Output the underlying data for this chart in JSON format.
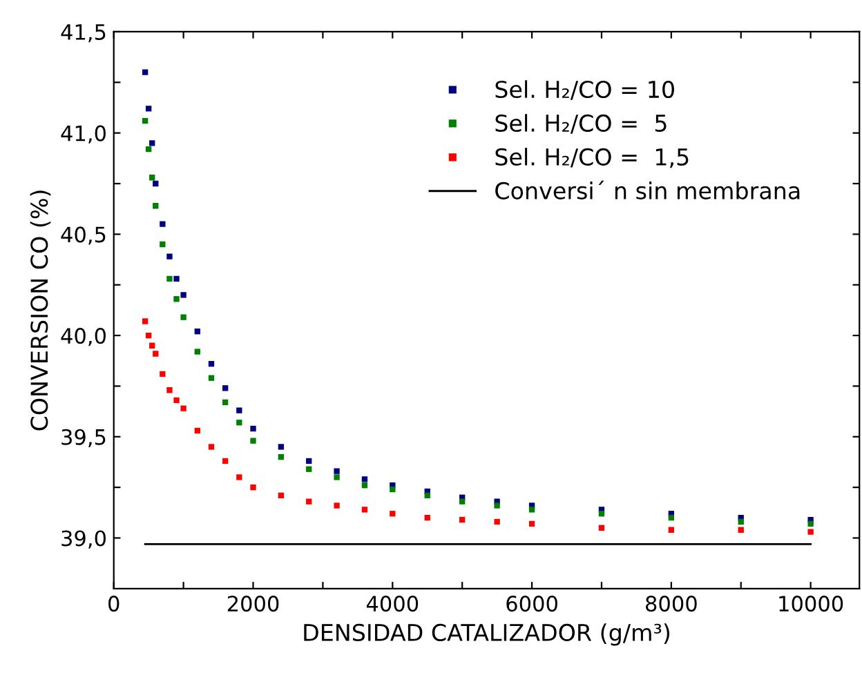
{
  "chart_data": {
    "type": "scatter",
    "xlabel": "DENSIDAD CATALIZADOR (g/m³)",
    "ylabel": "CONVERSION CO (%)",
    "x": [
      450,
      500,
      550,
      600,
      700,
      800,
      900,
      1000,
      1200,
      1400,
      1600,
      1800,
      2000,
      2400,
      2800,
      3200,
      3600,
      4000,
      4500,
      5000,
      5500,
      6000,
      7000,
      8000,
      9000,
      10000
    ],
    "series": [
      {
        "name": "Sel. H₂/CO = 10",
        "marker": "square",
        "color": "#000080",
        "values": [
          41.3,
          41.12,
          40.95,
          40.75,
          40.55,
          40.39,
          40.28,
          40.2,
          40.02,
          39.86,
          39.74,
          39.63,
          39.54,
          39.45,
          39.38,
          39.33,
          39.29,
          39.26,
          39.23,
          39.2,
          39.18,
          39.16,
          39.14,
          39.12,
          39.1,
          39.09
        ]
      },
      {
        "name": "Sel. H₂/CO =  5",
        "marker": "square",
        "color": "#008000",
        "values": [
          41.06,
          40.92,
          40.78,
          40.64,
          40.45,
          40.28,
          40.18,
          40.09,
          39.92,
          39.79,
          39.67,
          39.57,
          39.48,
          39.4,
          39.34,
          39.3,
          39.26,
          39.24,
          39.21,
          39.18,
          39.16,
          39.14,
          39.12,
          39.1,
          39.08,
          39.07
        ]
      },
      {
        "name": "Sel. H₂/CO =  1,5",
        "marker": "square",
        "color": "#ff0000",
        "values": [
          40.07,
          40.0,
          39.95,
          39.91,
          39.81,
          39.73,
          39.68,
          39.64,
          39.53,
          39.45,
          39.38,
          39.3,
          39.25,
          39.21,
          39.18,
          39.16,
          39.14,
          39.12,
          39.1,
          39.09,
          39.08,
          39.07,
          39.05,
          39.04,
          39.04,
          39.03
        ]
      },
      {
        "name": "Conversi´ n sin membrana",
        "type": "line",
        "color": "#000000",
        "x": [
          450,
          10000
        ],
        "values": [
          38.97,
          38.97
        ]
      }
    ],
    "legend": "top right",
    "grid": false,
    "xlim": [
      0,
      10700
    ],
    "ylim": [
      38.75,
      41.5
    ],
    "xticks": [
      0,
      {
        "value": 1000,
        "label": null
      },
      2000,
      {
        "value": 3000,
        "label": null
      },
      4000,
      {
        "value": 5000,
        "label": null
      },
      6000,
      {
        "value": 7000,
        "label": null
      },
      8000,
      {
        "value": 9000,
        "label": null
      },
      10000
    ],
    "yticks": [
      {
        "value": 39.0,
        "label": "39,0"
      },
      {
        "value": 39.25,
        "label": null
      },
      {
        "value": 39.5,
        "label": "39,5"
      },
      {
        "value": 39.75,
        "label": null
      },
      {
        "value": 40.0,
        "label": "40,0"
      },
      {
        "value": 40.25,
        "label": null
      },
      {
        "value": 40.5,
        "label": "40,5"
      },
      {
        "value": 40.75,
        "label": null
      },
      {
        "value": 41.0,
        "label": "41,0"
      },
      {
        "value": 41.25,
        "label": null
      },
      {
        "value": 41.5,
        "label": "41,5"
      }
    ]
  }
}
